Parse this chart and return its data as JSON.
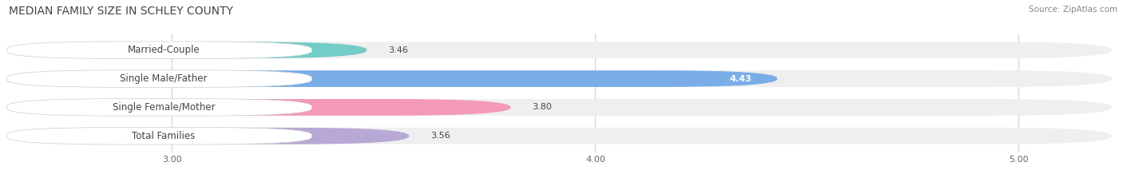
{
  "title": "MEDIAN FAMILY SIZE IN SCHLEY COUNTY",
  "source": "Source: ZipAtlas.com",
  "categories": [
    "Married-Couple",
    "Single Male/Father",
    "Single Female/Mother",
    "Total Families"
  ],
  "values": [
    3.46,
    4.43,
    3.8,
    3.56
  ],
  "bar_colors": [
    "#72ccc8",
    "#7aade8",
    "#f49ab8",
    "#b8a8d5"
  ],
  "value_white": [
    false,
    true,
    false,
    false
  ],
  "xlim_left": 2.62,
  "xlim_right": 5.22,
  "xticks": [
    3.0,
    4.0,
    5.0
  ],
  "xtick_labels": [
    "3.00",
    "4.00",
    "5.00"
  ],
  "bar_height": 0.58,
  "figsize": [
    14.06,
    2.33
  ],
  "dpi": 100,
  "background_color": "#ffffff",
  "bar_background_color": "#efefef",
  "title_fontsize": 10,
  "label_fontsize": 8.5,
  "value_fontsize": 8,
  "tick_fontsize": 8,
  "source_fontsize": 7.5,
  "grid_color": "#d8d8d8",
  "text_color": "#444444",
  "source_color": "#888888"
}
